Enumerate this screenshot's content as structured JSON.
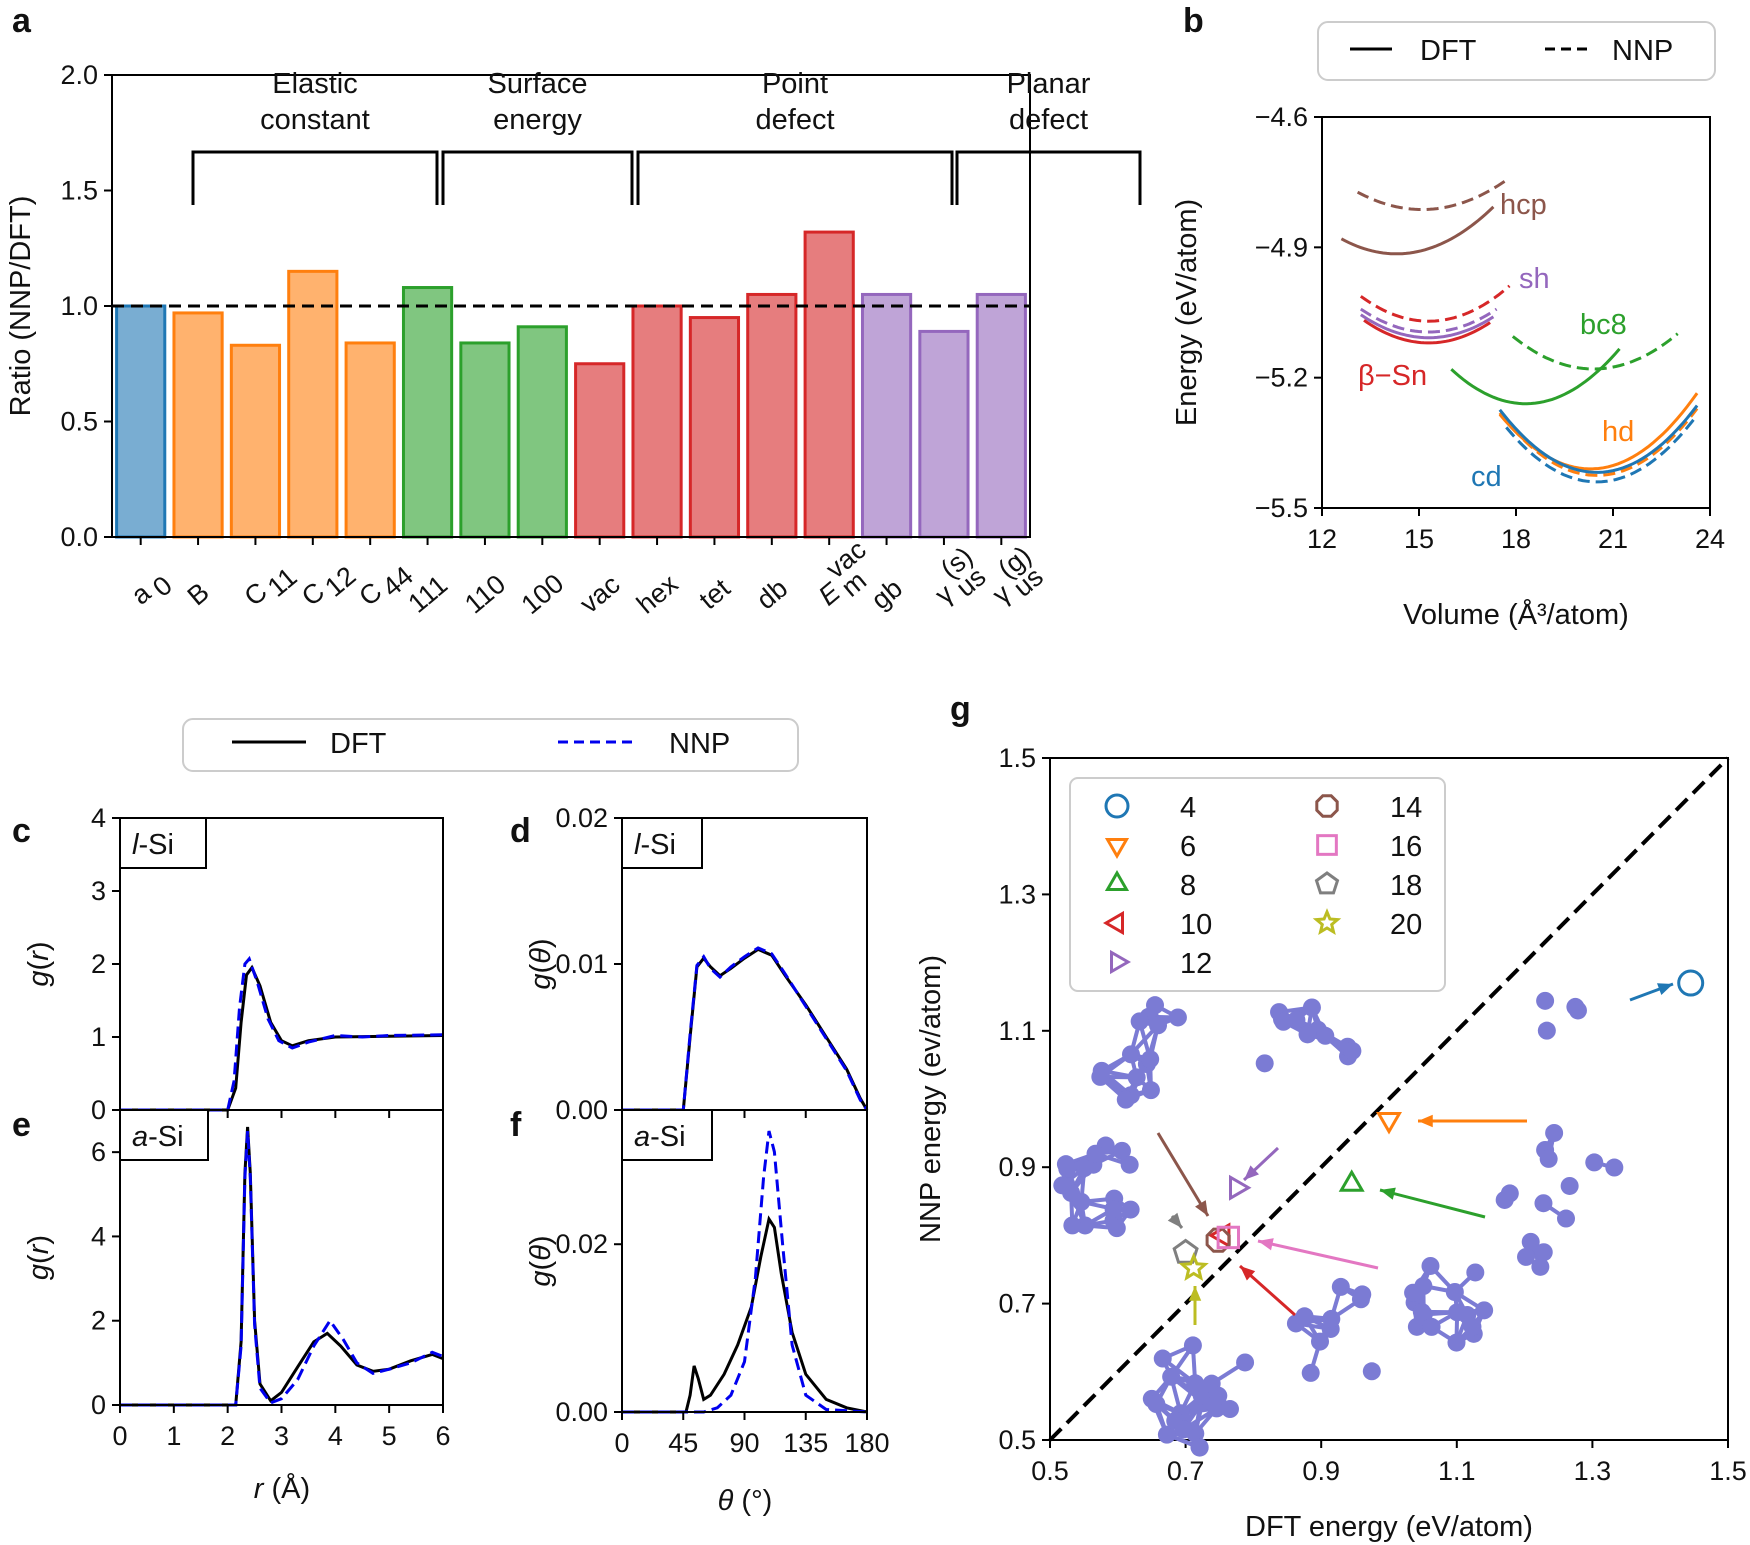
{
  "panel_labels": {
    "a": "a",
    "b": "b",
    "c": "c",
    "d": "d",
    "e": "e",
    "f": "f",
    "g": "g"
  },
  "colors": {
    "blue": "#1f77b4",
    "orange": "#ff7f0e",
    "green": "#2ca02c",
    "red": "#d62728",
    "purple": "#9467bd",
    "brown": "#8c564b",
    "pink": "#e377c2",
    "gray": "#7f7f7f",
    "olive": "#bcbd22",
    "cluster": "#7b7bd4",
    "nnp_blue": "#0000ee"
  },
  "chart_data": [
    {
      "id": "a",
      "type": "bar",
      "ylabel": "Ratio (NNP/DFT)",
      "ylim": [
        0,
        2.0
      ],
      "yticks": [
        "0.0",
        "0.5",
        "1.0",
        "1.5",
        "2.0"
      ],
      "reference_line": 1.0,
      "categories": [
        "a0",
        "B",
        "C11",
        "C12",
        "C44",
        "111",
        "110",
        "100",
        "vac",
        "hex",
        "tet",
        "db",
        "E_m^vac",
        "gb",
        "γ_us^(s)",
        "γ_us^(g)"
      ],
      "values": [
        1.0,
        0.97,
        0.83,
        1.15,
        0.84,
        1.08,
        0.84,
        0.91,
        0.75,
        1.0,
        0.95,
        1.05,
        1.32,
        1.05,
        0.89,
        1.05
      ],
      "bar_colors": [
        "blue",
        "orange",
        "orange",
        "orange",
        "orange",
        "green",
        "green",
        "green",
        "red",
        "red",
        "red",
        "red",
        "red",
        "purple",
        "purple",
        "purple"
      ],
      "groups": [
        {
          "label": [
            "Elastic",
            "constant"
          ],
          "start": 1,
          "end": 4
        },
        {
          "label": [
            "Surface",
            "energy"
          ],
          "start": 5,
          "end": 7
        },
        {
          "label": [
            "Point",
            "defect"
          ],
          "start": 8,
          "end": 12
        },
        {
          "label": [
            "Planar",
            "defect"
          ],
          "start": 13,
          "end": 15
        }
      ]
    },
    {
      "id": "b",
      "type": "line",
      "xlabel": "Volume (Å³/atom)",
      "ylabel": "Energy (eV/atom)",
      "xlim": [
        12,
        24
      ],
      "ylim": [
        -5.5,
        -4.6
      ],
      "xticks": [
        "12",
        "15",
        "18",
        "21",
        "24"
      ],
      "yticks": [
        "−4.6",
        "−4.9",
        "−5.2",
        "−5.5"
      ],
      "legend": [
        "DFT",
        "NNP"
      ],
      "series": [
        {
          "name": "hcp",
          "color": "brown",
          "dft": {
            "x0": 12.6,
            "x1": 17.3,
            "xm": 14.3,
            "ym": -4.915,
            "k": 0.012
          },
          "nnp": {
            "x0": 13.1,
            "x1": 17.8,
            "xm": 15.1,
            "ym": -4.813,
            "k": 0.01
          }
        },
        {
          "name": "sh",
          "color": "purple",
          "dft": {
            "x0": 13.2,
            "x1": 17.3,
            "xm": 15.3,
            "ym": -5.108,
            "k": 0.012
          },
          "nnp": {
            "x0": 13.2,
            "x1": 17.4,
            "xm": 15.3,
            "ym": -5.095,
            "k": 0.012
          }
        },
        {
          "name": "β−Sn",
          "color": "red",
          "dft": {
            "x0": 13.3,
            "x1": 17.2,
            "xm": 15.3,
            "ym": -5.12,
            "k": 0.013
          },
          "nnp": {
            "x0": 13.2,
            "x1": 17.8,
            "xm": 15.3,
            "ym": -5.07,
            "k": 0.013
          }
        },
        {
          "name": "bc8",
          "color": "green",
          "dft": {
            "x0": 16.0,
            "x1": 21.2,
            "xm": 18.3,
            "ym": -5.26,
            "k": 0.015
          },
          "nnp": {
            "x0": 17.9,
            "x1": 23.0,
            "xm": 20.4,
            "ym": -5.18,
            "k": 0.012
          }
        },
        {
          "name": "hd",
          "color": "orange",
          "dft": {
            "x0": 17.5,
            "x1": 23.6,
            "xm": 20.3,
            "ym": -5.41,
            "k": 0.016
          },
          "nnp": {
            "x0": 17.5,
            "x1": 23.6,
            "xm": 20.5,
            "ym": -5.425,
            "k": 0.016
          }
        },
        {
          "name": "cd",
          "color": "blue",
          "dft": {
            "x0": 17.5,
            "x1": 23.6,
            "xm": 20.5,
            "ym": -5.418,
            "k": 0.016
          },
          "nnp": {
            "x0": 17.7,
            "x1": 23.6,
            "xm": 20.5,
            "ym": -5.44,
            "k": 0.016
          }
        }
      ],
      "annotations": [
        {
          "text": "hcp",
          "color": "brown"
        },
        {
          "text": "sh",
          "color": "purple"
        },
        {
          "text": "bc8",
          "color": "green"
        },
        {
          "text": "β−Sn",
          "color": "red"
        },
        {
          "text": "hd",
          "color": "orange"
        },
        {
          "text": "cd",
          "color": "blue"
        }
      ]
    },
    {
      "id": "c",
      "type": "line",
      "ylabel": "g(r)",
      "ylim": [
        0,
        4
      ],
      "xlim": [
        0,
        6
      ],
      "yticks": [
        "0",
        "1",
        "2",
        "3",
        "4"
      ],
      "inset": "l-Si",
      "series": [
        {
          "name": "DFT",
          "points": [
            [
              0,
              0
            ],
            [
              2.0,
              0
            ],
            [
              2.15,
              0.3
            ],
            [
              2.25,
              1.2
            ],
            [
              2.35,
              1.85
            ],
            [
              2.45,
              1.95
            ],
            [
              2.6,
              1.7
            ],
            [
              2.8,
              1.2
            ],
            [
              3.0,
              0.95
            ],
            [
              3.2,
              0.88
            ],
            [
              3.5,
              0.95
            ],
            [
              4.0,
              1.0
            ],
            [
              5.0,
              1.01
            ],
            [
              6.0,
              1.02
            ]
          ]
        },
        {
          "name": "NNP",
          "points": [
            [
              0,
              0
            ],
            [
              2.0,
              0
            ],
            [
              2.12,
              0.4
            ],
            [
              2.22,
              1.4
            ],
            [
              2.32,
              2.0
            ],
            [
              2.4,
              2.07
            ],
            [
              2.55,
              1.75
            ],
            [
              2.75,
              1.25
            ],
            [
              2.95,
              0.95
            ],
            [
              3.2,
              0.85
            ],
            [
              3.5,
              0.93
            ],
            [
              4.0,
              1.02
            ],
            [
              4.5,
              1.0
            ],
            [
              5.0,
              1.02
            ],
            [
              6.0,
              1.03
            ]
          ]
        }
      ]
    },
    {
      "id": "d",
      "type": "line",
      "ylabel": "g(θ)",
      "ylim": [
        0,
        0.02
      ],
      "xlim": [
        0,
        180
      ],
      "yticks": [
        "0.00",
        "0.01",
        "0.02"
      ],
      "inset": "l-Si",
      "series": [
        {
          "name": "DFT",
          "points": [
            [
              0,
              0
            ],
            [
              45,
              0
            ],
            [
              50,
              0.005
            ],
            [
              55,
              0.0098
            ],
            [
              60,
              0.0104
            ],
            [
              65,
              0.0098
            ],
            [
              72,
              0.0092
            ],
            [
              80,
              0.0097
            ],
            [
              90,
              0.0104
            ],
            [
              100,
              0.011
            ],
            [
              110,
              0.0106
            ],
            [
              120,
              0.0092
            ],
            [
              135,
              0.0072
            ],
            [
              150,
              0.005
            ],
            [
              165,
              0.0028
            ],
            [
              175,
              0.0008
            ],
            [
              180,
              0
            ]
          ]
        },
        {
          "name": "NNP",
          "points": [
            [
              0,
              0
            ],
            [
              45,
              0
            ],
            [
              50,
              0.0052
            ],
            [
              55,
              0.0099
            ],
            [
              60,
              0.0105
            ],
            [
              65,
              0.0097
            ],
            [
              72,
              0.0091
            ],
            [
              80,
              0.0098
            ],
            [
              90,
              0.0105
            ],
            [
              100,
              0.0111
            ],
            [
              110,
              0.0107
            ],
            [
              120,
              0.0093
            ],
            [
              135,
              0.0071
            ],
            [
              150,
              0.0049
            ],
            [
              165,
              0.0027
            ],
            [
              175,
              0.0007
            ],
            [
              180,
              0
            ]
          ]
        }
      ]
    },
    {
      "id": "e",
      "type": "line",
      "ylabel": "g(r)",
      "ylim": [
        0,
        7
      ],
      "xlim": [
        0,
        6
      ],
      "yticks": [
        "0",
        "2",
        "4",
        "6"
      ],
      "xticks": [
        "0",
        "1",
        "2",
        "3",
        "4",
        "5",
        "6"
      ],
      "xlabel": "r (Å)",
      "inset": "a-Si",
      "series": [
        {
          "name": "DFT",
          "points": [
            [
              0,
              0
            ],
            [
              2.15,
              0
            ],
            [
              2.25,
              1.5
            ],
            [
              2.32,
              5.5
            ],
            [
              2.37,
              6.6
            ],
            [
              2.42,
              5.5
            ],
            [
              2.5,
              2.0
            ],
            [
              2.6,
              0.5
            ],
            [
              2.8,
              0.1
            ],
            [
              3.0,
              0.3
            ],
            [
              3.3,
              0.9
            ],
            [
              3.6,
              1.5
            ],
            [
              3.85,
              1.7
            ],
            [
              4.1,
              1.4
            ],
            [
              4.4,
              0.95
            ],
            [
              4.7,
              0.8
            ],
            [
              5.0,
              0.85
            ],
            [
              5.4,
              1.05
            ],
            [
              5.8,
              1.2
            ],
            [
              6.0,
              1.1
            ]
          ]
        },
        {
          "name": "NNP",
          "points": [
            [
              0,
              0
            ],
            [
              2.15,
              0
            ],
            [
              2.25,
              1.4
            ],
            [
              2.32,
              5.4
            ],
            [
              2.37,
              6.5
            ],
            [
              2.42,
              5.4
            ],
            [
              2.5,
              1.9
            ],
            [
              2.6,
              0.4
            ],
            [
              2.8,
              0.05
            ],
            [
              3.0,
              0.15
            ],
            [
              3.3,
              0.6
            ],
            [
              3.6,
              1.4
            ],
            [
              3.9,
              2.0
            ],
            [
              4.15,
              1.55
            ],
            [
              4.4,
              1.0
            ],
            [
              4.7,
              0.75
            ],
            [
              5.0,
              0.85
            ],
            [
              5.4,
              1.0
            ],
            [
              5.8,
              1.25
            ],
            [
              6.0,
              1.15
            ]
          ]
        }
      ]
    },
    {
      "id": "f",
      "type": "line",
      "ylabel": "g(θ)",
      "ylim": [
        0,
        0.036
      ],
      "xlim": [
        0,
        180
      ],
      "yticks": [
        "0.00",
        "0.02"
      ],
      "xticks": [
        "0",
        "45",
        "90",
        "135",
        "180"
      ],
      "xlabel": "θ (°)",
      "inset": "a-Si",
      "series": [
        {
          "name": "DFT",
          "points": [
            [
              0,
              0
            ],
            [
              47,
              0
            ],
            [
              50,
              0.002
            ],
            [
              53,
              0.0055
            ],
            [
              56,
              0.004
            ],
            [
              60,
              0.0015
            ],
            [
              65,
              0.002
            ],
            [
              75,
              0.0045
            ],
            [
              85,
              0.008
            ],
            [
              95,
              0.0125
            ],
            [
              102,
              0.0185
            ],
            [
              108,
              0.023
            ],
            [
              112,
              0.022
            ],
            [
              117,
              0.0165
            ],
            [
              125,
              0.0095
            ],
            [
              135,
              0.0045
            ],
            [
              150,
              0.0015
            ],
            [
              165,
              0.0005
            ],
            [
              180,
              0
            ]
          ]
        },
        {
          "name": "NNP",
          "points": [
            [
              0,
              0
            ],
            [
              60,
              0
            ],
            [
              70,
              0.0005
            ],
            [
              80,
              0.002
            ],
            [
              90,
              0.006
            ],
            [
              98,
              0.016
            ],
            [
              104,
              0.028
            ],
            [
              108,
              0.0335
            ],
            [
              112,
              0.031
            ],
            [
              118,
              0.02
            ],
            [
              125,
              0.008
            ],
            [
              135,
              0.002
            ],
            [
              150,
              0.0003
            ],
            [
              180,
              0
            ]
          ]
        }
      ]
    },
    {
      "id": "g",
      "type": "scatter",
      "xlabel": "DFT energy (eV/atom)",
      "ylabel": "NNP energy (ev/atom)",
      "xlim": [
        0.5,
        1.5
      ],
      "ylim": [
        0.5,
        1.5
      ],
      "xticks": [
        "0.5",
        "0.7",
        "0.9",
        "1.1",
        "1.3",
        "1.5"
      ],
      "yticks": [
        "0.5",
        "0.7",
        "0.9",
        "1.1",
        "1.3",
        "1.5"
      ],
      "points": [
        {
          "label": "4",
          "x": 1.445,
          "y": 1.17,
          "marker": "circle",
          "color": "blue"
        },
        {
          "label": "6",
          "x": 1.0,
          "y": 0.97,
          "marker": "tri_down",
          "color": "orange"
        },
        {
          "label": "8",
          "x": 0.945,
          "y": 0.875,
          "marker": "tri_up",
          "color": "green"
        },
        {
          "label": "10",
          "x": 0.755,
          "y": 0.8,
          "marker": "tri_left",
          "color": "red"
        },
        {
          "label": "12",
          "x": 0.775,
          "y": 0.87,
          "marker": "tri_right",
          "color": "purple"
        },
        {
          "label": "14",
          "x": 0.748,
          "y": 0.793,
          "marker": "octagon",
          "color": "brown"
        },
        {
          "label": "16",
          "x": 0.763,
          "y": 0.797,
          "marker": "square",
          "color": "pink"
        },
        {
          "label": "18",
          "x": 0.7,
          "y": 0.775,
          "marker": "pentagon",
          "color": "gray"
        },
        {
          "label": "20",
          "x": 0.712,
          "y": 0.752,
          "marker": "star",
          "color": "olive"
        }
      ]
    }
  ],
  "legend_cd": {
    "dft": "DFT",
    "nnp": "NNP"
  },
  "legend_b": {
    "dft": "DFT",
    "nnp": "NNP"
  }
}
